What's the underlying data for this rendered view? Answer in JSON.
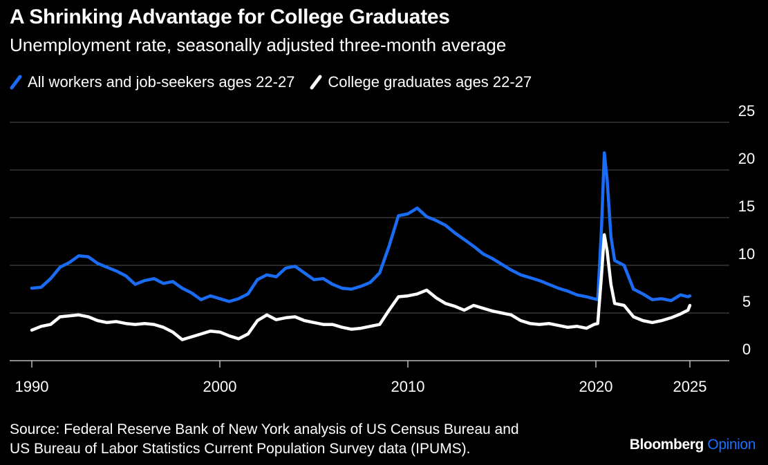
{
  "header": {
    "title": "A Shrinking Advantage for College Graduates",
    "subtitle": "Unemployment rate, seasonally adjusted three-month average"
  },
  "footer": {
    "source_line1": "Source: Federal Reserve Bank of New York analysis of US Census Bureau and",
    "source_line2": "US Bureau of Labor Statistics Current Population Survey data (IPUMS).",
    "brand_main": "Bloomberg",
    "brand_accent": "Opinion"
  },
  "colors": {
    "background": "#000000",
    "all_workers": "#1a6cf5",
    "college": "#ffffff",
    "grid": "#555555"
  },
  "chart_data": {
    "type": "line",
    "title": "A Shrinking Advantage for College Graduates",
    "subtitle": "Unemployment rate, seasonally adjusted three-month average",
    "xlabel": "",
    "ylabel": "",
    "xlim": [
      1989.5,
      2028
    ],
    "ylim": [
      0,
      25
    ],
    "y_ticks": [
      0,
      5,
      10,
      15,
      20,
      25
    ],
    "x_ticks": [
      1990,
      2000,
      2010,
      2020,
      2025
    ],
    "y_axis_side": "right",
    "grid": true,
    "legend_position": "top-left",
    "series": [
      {
        "name": "All workers and job-seekers ages 22-27",
        "color": "#1a6cf5",
        "points": [
          [
            1990.0,
            7.6
          ],
          [
            1990.5,
            7.7
          ],
          [
            1991.0,
            8.6
          ],
          [
            1991.5,
            9.8
          ],
          [
            1992.0,
            10.3
          ],
          [
            1992.5,
            11.0
          ],
          [
            1993.0,
            10.9
          ],
          [
            1993.5,
            10.2
          ],
          [
            1994.0,
            9.8
          ],
          [
            1994.5,
            9.4
          ],
          [
            1995.0,
            8.9
          ],
          [
            1995.5,
            8.0
          ],
          [
            1996.0,
            8.4
          ],
          [
            1996.5,
            8.6
          ],
          [
            1997.0,
            8.1
          ],
          [
            1997.5,
            8.3
          ],
          [
            1998.0,
            7.6
          ],
          [
            1998.5,
            7.1
          ],
          [
            1999.0,
            6.4
          ],
          [
            1999.5,
            6.8
          ],
          [
            2000.0,
            6.5
          ],
          [
            2000.5,
            6.2
          ],
          [
            2001.0,
            6.5
          ],
          [
            2001.5,
            7.0
          ],
          [
            2002.0,
            8.5
          ],
          [
            2002.5,
            9.0
          ],
          [
            2003.0,
            8.8
          ],
          [
            2003.5,
            9.7
          ],
          [
            2004.0,
            9.9
          ],
          [
            2004.5,
            9.2
          ],
          [
            2005.0,
            8.5
          ],
          [
            2005.5,
            8.6
          ],
          [
            2006.0,
            8.0
          ],
          [
            2006.5,
            7.6
          ],
          [
            2007.0,
            7.5
          ],
          [
            2007.5,
            7.8
          ],
          [
            2008.0,
            8.2
          ],
          [
            2008.5,
            9.2
          ],
          [
            2009.0,
            12.0
          ],
          [
            2009.5,
            15.2
          ],
          [
            2010.0,
            15.4
          ],
          [
            2010.5,
            16.0
          ],
          [
            2011.0,
            15.1
          ],
          [
            2011.5,
            14.7
          ],
          [
            2012.0,
            14.2
          ],
          [
            2012.5,
            13.4
          ],
          [
            2013.0,
            12.7
          ],
          [
            2013.5,
            12.0
          ],
          [
            2014.0,
            11.2
          ],
          [
            2014.5,
            10.7
          ],
          [
            2015.0,
            10.1
          ],
          [
            2015.5,
            9.5
          ],
          [
            2016.0,
            9.0
          ],
          [
            2016.5,
            8.7
          ],
          [
            2017.0,
            8.4
          ],
          [
            2017.5,
            8.0
          ],
          [
            2018.0,
            7.6
          ],
          [
            2018.5,
            7.3
          ],
          [
            2019.0,
            6.9
          ],
          [
            2019.5,
            6.7
          ],
          [
            2019.9,
            6.5
          ],
          [
            2020.1,
            6.4
          ],
          [
            2020.3,
            14.0
          ],
          [
            2020.45,
            21.8
          ],
          [
            2020.6,
            19.0
          ],
          [
            2020.8,
            13.0
          ],
          [
            2021.0,
            10.5
          ],
          [
            2021.5,
            10.0
          ],
          [
            2022.0,
            7.5
          ],
          [
            2022.5,
            7.0
          ],
          [
            2023.0,
            6.4
          ],
          [
            2023.5,
            6.5
          ],
          [
            2024.0,
            6.3
          ],
          [
            2024.5,
            6.9
          ],
          [
            2024.9,
            6.7
          ],
          [
            2025.0,
            6.8
          ]
        ]
      },
      {
        "name": "College graduates ages 22-27",
        "color": "#ffffff",
        "points": [
          [
            1990.0,
            3.2
          ],
          [
            1990.5,
            3.6
          ],
          [
            1991.0,
            3.8
          ],
          [
            1991.5,
            4.6
          ],
          [
            1992.0,
            4.7
          ],
          [
            1992.5,
            4.8
          ],
          [
            1993.0,
            4.6
          ],
          [
            1993.5,
            4.2
          ],
          [
            1994.0,
            4.0
          ],
          [
            1994.5,
            4.1
          ],
          [
            1995.0,
            3.9
          ],
          [
            1995.5,
            3.8
          ],
          [
            1996.0,
            3.9
          ],
          [
            1996.5,
            3.8
          ],
          [
            1997.0,
            3.5
          ],
          [
            1997.5,
            3.0
          ],
          [
            1998.0,
            2.2
          ],
          [
            1998.5,
            2.5
          ],
          [
            1999.0,
            2.8
          ],
          [
            1999.5,
            3.1
          ],
          [
            2000.0,
            3.0
          ],
          [
            2000.5,
            2.6
          ],
          [
            2001.0,
            2.3
          ],
          [
            2001.5,
            2.8
          ],
          [
            2002.0,
            4.2
          ],
          [
            2002.5,
            4.8
          ],
          [
            2003.0,
            4.3
          ],
          [
            2003.5,
            4.5
          ],
          [
            2004.0,
            4.6
          ],
          [
            2004.5,
            4.2
          ],
          [
            2005.0,
            4.0
          ],
          [
            2005.5,
            3.8
          ],
          [
            2006.0,
            3.8
          ],
          [
            2006.5,
            3.5
          ],
          [
            2007.0,
            3.3
          ],
          [
            2007.5,
            3.4
          ],
          [
            2008.0,
            3.6
          ],
          [
            2008.5,
            3.8
          ],
          [
            2009.0,
            5.3
          ],
          [
            2009.5,
            6.7
          ],
          [
            2010.0,
            6.8
          ],
          [
            2010.5,
            7.0
          ],
          [
            2011.0,
            7.4
          ],
          [
            2011.5,
            6.6
          ],
          [
            2012.0,
            6.0
          ],
          [
            2012.5,
            5.7
          ],
          [
            2013.0,
            5.3
          ],
          [
            2013.5,
            5.8
          ],
          [
            2014.0,
            5.5
          ],
          [
            2014.5,
            5.2
          ],
          [
            2015.0,
            5.0
          ],
          [
            2015.5,
            4.8
          ],
          [
            2016.0,
            4.2
          ],
          [
            2016.5,
            3.9
          ],
          [
            2017.0,
            3.8
          ],
          [
            2017.5,
            3.9
          ],
          [
            2018.0,
            3.7
          ],
          [
            2018.5,
            3.5
          ],
          [
            2019.0,
            3.6
          ],
          [
            2019.5,
            3.4
          ],
          [
            2019.9,
            3.8
          ],
          [
            2020.1,
            3.9
          ],
          [
            2020.3,
            9.0
          ],
          [
            2020.45,
            13.2
          ],
          [
            2020.6,
            11.5
          ],
          [
            2020.8,
            8.0
          ],
          [
            2021.0,
            6.0
          ],
          [
            2021.5,
            5.8
          ],
          [
            2022.0,
            4.6
          ],
          [
            2022.5,
            4.2
          ],
          [
            2023.0,
            4.0
          ],
          [
            2023.5,
            4.2
          ],
          [
            2024.0,
            4.5
          ],
          [
            2024.5,
            4.9
          ],
          [
            2024.9,
            5.3
          ],
          [
            2025.0,
            5.8
          ]
        ]
      }
    ]
  }
}
